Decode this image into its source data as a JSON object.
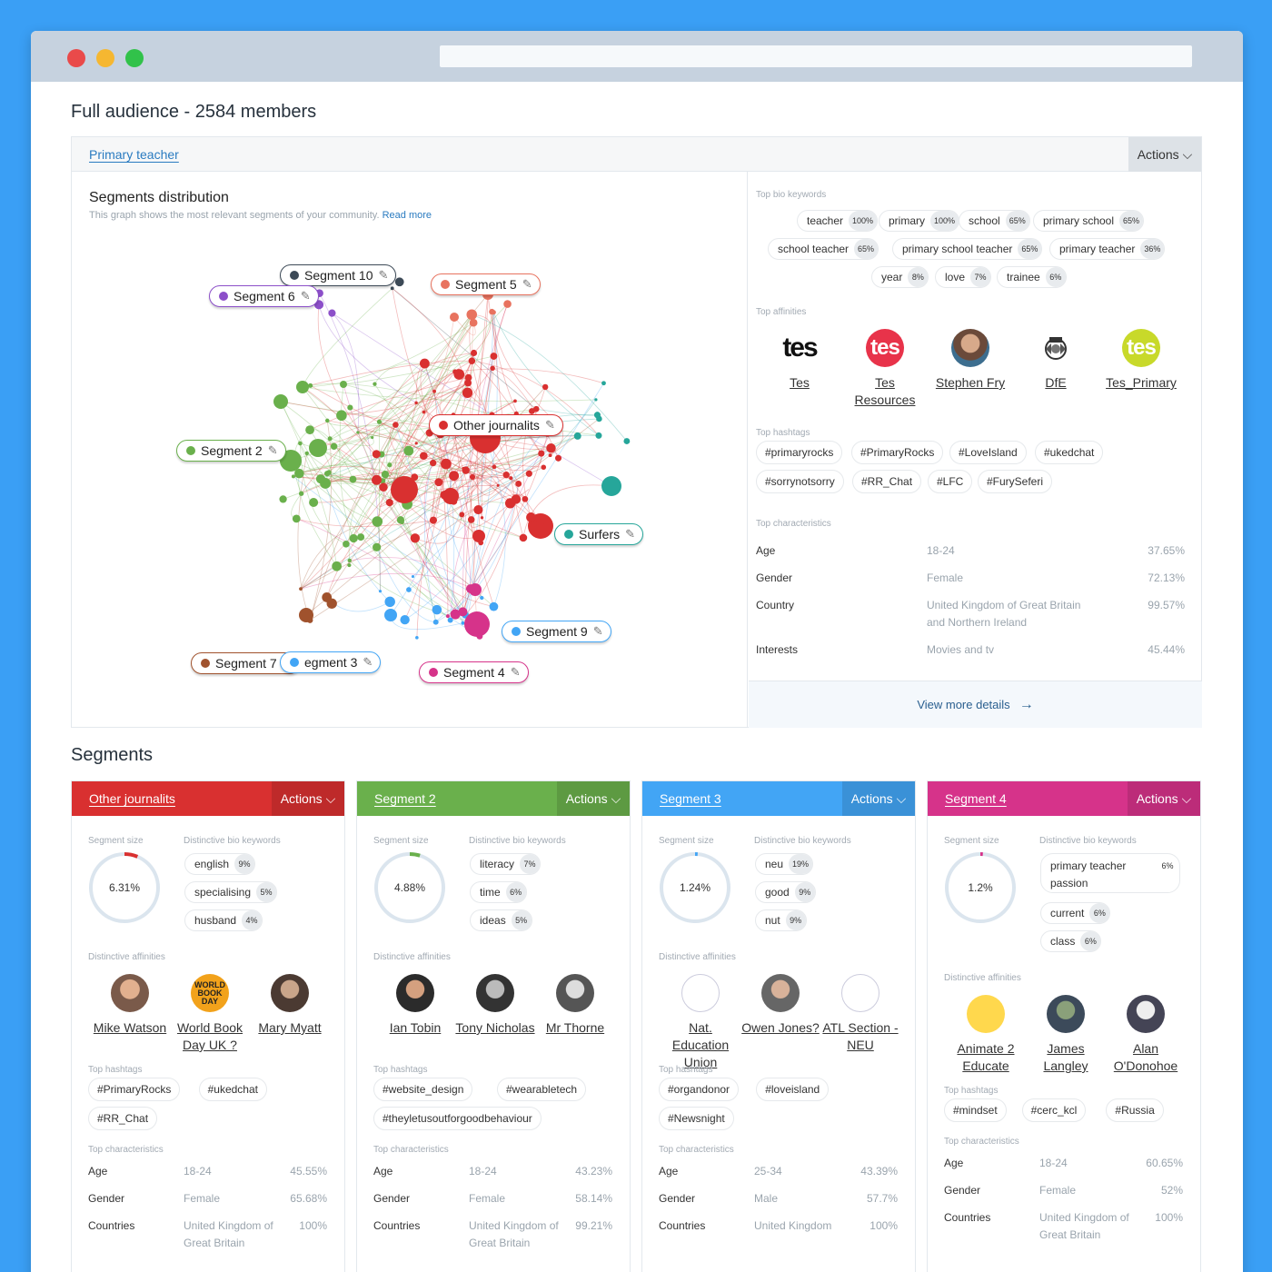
{
  "window": {
    "url": ""
  },
  "page_title": "Full audience - 2584 members",
  "main": {
    "tab": "Primary teacher",
    "actions": "Actions",
    "distribution_title": "Segments distribution",
    "distribution_sub": "This graph shows the most relevant segments of your community.",
    "read_more": "Read more",
    "graph_labels": [
      {
        "name": "Segment 10",
        "color": "#3d4a57"
      },
      {
        "name": "Segment 6",
        "color": "#8c4fc9"
      },
      {
        "name": "Segment 5",
        "color": "#e8735f"
      },
      {
        "name": "Other journalits",
        "color": "#d93030"
      },
      {
        "name": "Segment 2",
        "color": "#6ab04c"
      },
      {
        "name": "Surfers",
        "color": "#26a69a"
      },
      {
        "name": "Segment 9",
        "color": "#42a5f5"
      },
      {
        "name": "Segment 7",
        "color": "#a0522d"
      },
      {
        "name": "egment 3",
        "color": "#42a5f5"
      },
      {
        "name": "Segment 4",
        "color": "#d6338a"
      }
    ],
    "edit_icon": "pencil-icon"
  },
  "right": {
    "keywords_label": "Top bio keywords",
    "keywords": [
      {
        "k": "teacher",
        "p": "100%"
      },
      {
        "k": "primary",
        "p": "100%"
      },
      {
        "k": "school",
        "p": "65%"
      },
      {
        "k": "primary school",
        "p": "65%"
      },
      {
        "k": "school teacher",
        "p": "65%"
      },
      {
        "k": "primary school teacher",
        "p": "65%"
      },
      {
        "k": "primary teacher",
        "p": "36%"
      },
      {
        "k": "year",
        "p": "8%"
      },
      {
        "k": "love",
        "p": "7%"
      },
      {
        "k": "trainee",
        "p": "6%"
      }
    ],
    "affinities_label": "Top affinities",
    "affinities": [
      {
        "n": "Tes"
      },
      {
        "n": "Tes Resources"
      },
      {
        "n": "Stephen Fry"
      },
      {
        "n": "DfE"
      },
      {
        "n": "Tes_Primary"
      }
    ],
    "tes_logo": "tes",
    "hashtags_label": "Top hashtags",
    "hashtags": [
      "#primaryrocks",
      "#PrimaryRocks",
      "#LoveIsland",
      "#ukedchat",
      "#sorrynotsorry",
      "#RR_Chat",
      "#LFC",
      "#FurySeferi"
    ],
    "chars_label": "Top characteristics",
    "chars": [
      {
        "k": "Age",
        "v": "18-24",
        "p": "37.65%"
      },
      {
        "k": "Gender",
        "v": "Female",
        "p": "72.13%"
      },
      {
        "k": "Country",
        "v": "United Kingdom of Great Britain and Northern Ireland",
        "p": "99.57%"
      },
      {
        "k": "Interests",
        "v": "Movies and tv",
        "p": "45.44%"
      }
    ],
    "view_more": "View more details"
  },
  "segments_title": "Segments",
  "labels": {
    "size": "Segment size",
    "kw": "Distinctive bio keywords",
    "aff": "Distinctive affinities",
    "hash": "Top hashtags",
    "chars": "Top characteristics"
  },
  "cards": [
    {
      "name": "Other journalits",
      "color": "#d93030",
      "actions": "Actions",
      "size": "6.31%",
      "size_frac": 0.0631,
      "keywords": [
        {
          "k": "english",
          "p": "9%"
        },
        {
          "k": "specialising",
          "p": "5%"
        },
        {
          "k": "husband",
          "p": "4%"
        }
      ],
      "affinities": [
        {
          "n": "Mike Watson"
        },
        {
          "n": "World Book Day UK ?"
        },
        {
          "n": "Mary Myatt"
        }
      ],
      "book_logo": "WORLD BOOK DAY",
      "hashtags": [
        "#PrimaryRocks",
        "#ukedchat",
        "#RR_Chat"
      ],
      "chars": [
        {
          "k": "Age",
          "v": "18-24",
          "p": "45.55%"
        },
        {
          "k": "Gender",
          "v": "Female",
          "p": "65.68%"
        },
        {
          "k": "Countries",
          "v": "United Kingdom of Great Britain",
          "p": "100%"
        }
      ]
    },
    {
      "name": "Segment 2",
      "color": "#6ab04c",
      "actions": "Actions",
      "size": "4.88%",
      "size_frac": 0.0488,
      "keywords": [
        {
          "k": "literacy",
          "p": "7%"
        },
        {
          "k": "time",
          "p": "6%"
        },
        {
          "k": "ideas",
          "p": "5%"
        }
      ],
      "affinities": [
        {
          "n": "Ian Tobin"
        },
        {
          "n": "Tony Nicholas"
        },
        {
          "n": "Mr Thorne"
        }
      ],
      "hashtags": [
        "#website_design",
        "#wearabletech",
        "#theyletusoutforgoodbehaviour"
      ],
      "chars": [
        {
          "k": "Age",
          "v": "18-24",
          "p": "43.23%"
        },
        {
          "k": "Gender",
          "v": "Female",
          "p": "58.14%"
        },
        {
          "k": "Countries",
          "v": "United Kingdom of Great Britain",
          "p": "99.21%"
        }
      ]
    },
    {
      "name": "Segment 3",
      "color": "#42a5f5",
      "actions": "Actions",
      "size": "1.24%",
      "size_frac": 0.0124,
      "keywords": [
        {
          "k": "neu",
          "p": "19%"
        },
        {
          "k": "good",
          "p": "9%"
        },
        {
          "k": "nut",
          "p": "9%"
        }
      ],
      "affinities": [
        {
          "n": "Nat. Education Union"
        },
        {
          "n": "Owen Jones?"
        },
        {
          "n": "ATL Section - NEU"
        }
      ],
      "hashtags": [
        "#organdonor",
        "#loveisland",
        "#Newsnight"
      ],
      "chars": [
        {
          "k": "Age",
          "v": "25-34",
          "p": "43.39%"
        },
        {
          "k": "Gender",
          "v": "Male",
          "p": "57.7%"
        },
        {
          "k": "Countries",
          "v": "United Kingdom",
          "p": "100%"
        }
      ]
    },
    {
      "name": "Segment 4",
      "color": "#d6338a",
      "actions": "Actions",
      "size": "1.2%",
      "size_frac": 0.012,
      "keywords": [
        {
          "k": "primary teacher passion",
          "p": "6%"
        },
        {
          "k": "current",
          "p": "6%"
        },
        {
          "k": "class",
          "p": "6%"
        }
      ],
      "affinities": [
        {
          "n": "Animate 2 Educate"
        },
        {
          "n": "James Langley"
        },
        {
          "n": "Alan O'Donohoe"
        }
      ],
      "hashtags": [
        "#mindset",
        "#cerc_kcl",
        "#Russia"
      ],
      "chars": [
        {
          "k": "Age",
          "v": "18-24",
          "p": "60.65%"
        },
        {
          "k": "Gender",
          "v": "Female",
          "p": "52%"
        },
        {
          "k": "Countries",
          "v": "United Kingdom of Great Britain",
          "p": "100%"
        }
      ]
    }
  ]
}
